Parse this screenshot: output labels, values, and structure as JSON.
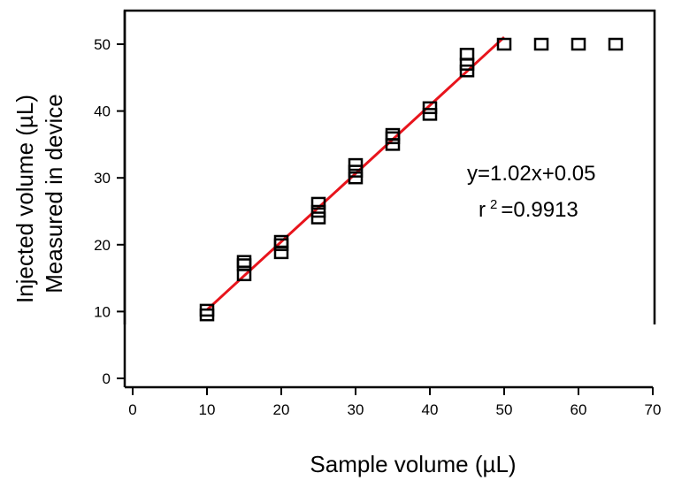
{
  "chart_data": {
    "type": "scatter",
    "xlabel": "Sample volume (µL)",
    "ylabel": [
      "Injected volume (µL)",
      "Measured in device"
    ],
    "xlim": [
      0,
      70
    ],
    "ylim": [
      0,
      50
    ],
    "xticks": [
      "0",
      "10",
      "20",
      "30",
      "40",
      "50",
      "60",
      "70"
    ],
    "yticks": [
      "0",
      "10",
      "20",
      "30",
      "40",
      "50"
    ],
    "grid": false,
    "legend": "none",
    "marker": "hollow-square",
    "points": [
      {
        "x": 10,
        "y": 9.5
      },
      {
        "x": 10,
        "y": 10.2
      },
      {
        "x": 15,
        "y": 15.5
      },
      {
        "x": 15,
        "y": 17.0
      },
      {
        "x": 15,
        "y": 17.5
      },
      {
        "x": 20,
        "y": 18.8
      },
      {
        "x": 20,
        "y": 20.0
      },
      {
        "x": 20,
        "y": 20.5
      },
      {
        "x": 25,
        "y": 24.0
      },
      {
        "x": 25,
        "y": 25.0
      },
      {
        "x": 25,
        "y": 26.2
      },
      {
        "x": 30,
        "y": 30.0
      },
      {
        "x": 30,
        "y": 31.0
      },
      {
        "x": 30,
        "y": 32.0
      },
      {
        "x": 35,
        "y": 35.0
      },
      {
        "x": 35,
        "y": 36.0
      },
      {
        "x": 35,
        "y": 36.5
      },
      {
        "x": 40,
        "y": 39.5
      },
      {
        "x": 40,
        "y": 40.5
      },
      {
        "x": 45,
        "y": 46.0
      },
      {
        "x": 45,
        "y": 47.0
      },
      {
        "x": 45,
        "y": 48.5
      },
      {
        "x": 50,
        "y": 50
      },
      {
        "x": 55,
        "y": 50
      },
      {
        "x": 60,
        "y": 50
      },
      {
        "x": 65,
        "y": 50
      }
    ],
    "fit_line": {
      "slope": 1.02,
      "intercept": 0.05,
      "x_range": [
        10,
        50
      ],
      "color": "#e8141c"
    },
    "annotations": {
      "equation": "y=1.02x+0.05",
      "r_squared": "r 2 =0.9913"
    }
  }
}
